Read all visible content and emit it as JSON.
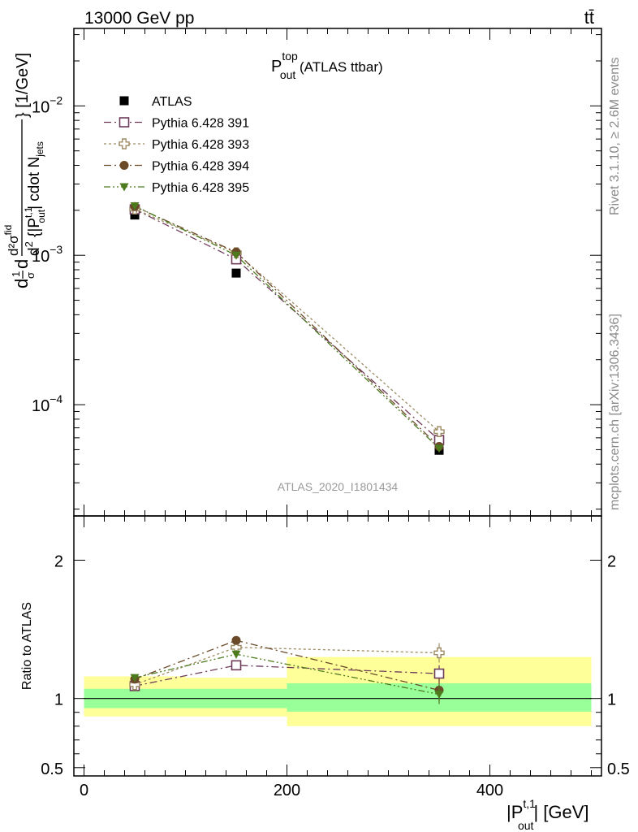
{
  "header": {
    "energy_label": "13000 GeV pp",
    "process_label": "tt̄"
  },
  "side_labels": {
    "rivet": "Rivet 3.1.10, ≥ 2.6M events",
    "mcplots": "mcplots.cern.ch [arXiv:1306.3436]"
  },
  "chart_data": [
    {
      "type": "scatter",
      "title": {
        "main": "P",
        "sup": "top",
        "sub": "out",
        "suffix": " (ATLAS ttbar)"
      },
      "watermark": "ATLAS_2020_I1801434",
      "ylabel": "d1dσd d²σ^fid/d²{|P_out^t,1| cdot N_jets} [1/GeV]",
      "ylabel_parts": {
        "front": "d",
        "f_num": "1",
        "f_den": "σ",
        "mid": "d",
        "bracket_num": "d²σ",
        "bracket_num_sup": "fid",
        "inner_lead": "d",
        "inner_sup": "2",
        "inner_p": " {|P",
        "inner_p_sup": "t,1",
        "inner_p_sub": "out",
        "inner_tail": "| cdot N",
        "inner_tail_sub": "jets",
        "close": "} [1/GeV]"
      },
      "yscale": "log",
      "ylim": [
        1.8e-05,
        0.033
      ],
      "y_ticks": [
        {
          "value": 0.01,
          "base": "10",
          "exp": "−2"
        },
        {
          "value": 0.001,
          "base": "10",
          "exp": "−3"
        },
        {
          "value": 0.0001,
          "base": "10",
          "exp": "−4"
        }
      ],
      "xlim": [
        -10,
        510
      ],
      "legend_position": "top-left",
      "series": [
        {
          "name": "ATLAS",
          "color": "#000000",
          "marker": "filled-square",
          "line": "none",
          "x": [
            50,
            150,
            350
          ],
          "y": [
            0.00186,
            0.00076,
            4.95e-05
          ]
        },
        {
          "name": "Pythia 6.428 391",
          "color": "#6d3b5a",
          "marker": "open-square",
          "line": "dashdot",
          "x": [
            50,
            150,
            350
          ],
          "y": [
            0.00203,
            0.00094,
            5.8e-05
          ]
        },
        {
          "name": "Pythia 6.428 393",
          "color": "#9c8a63",
          "marker": "open-cross",
          "line": "dotted",
          "x": [
            50,
            150,
            350
          ],
          "y": [
            0.00204,
            0.00104,
            6.6e-05
          ]
        },
        {
          "name": "Pythia 6.428 394",
          "color": "#6b4a2a",
          "marker": "filled-circle",
          "line": "dashdot",
          "x": [
            50,
            150,
            350
          ],
          "y": [
            0.00212,
            0.00105,
            5.25e-05
          ]
        },
        {
          "name": "Pythia 6.428 395",
          "color": "#4c7a1d",
          "marker": "filled-triangle-down",
          "line": "dashdotdot",
          "x": [
            50,
            150,
            350
          ],
          "y": [
            0.00214,
            0.001,
            5.1e-05
          ]
        }
      ]
    },
    {
      "type": "scatter",
      "ylabel": "Ratio to ATLAS",
      "ylim": [
        0.44,
        2.32
      ],
      "y_ticks": [
        {
          "value": 0.5,
          "label": "0.5"
        },
        {
          "value": 1,
          "label": "1"
        },
        {
          "value": 2,
          "label": "2"
        }
      ],
      "xlabel": {
        "lead": "|P",
        "sup": "t,1",
        "sub": "out",
        "tail": "| [GeV]"
      },
      "xlim": [
        -10,
        510
      ],
      "x_ticks": [
        {
          "value": 0,
          "label": "0"
        },
        {
          "value": 200,
          "label": "200"
        },
        {
          "value": 400,
          "label": "400"
        }
      ],
      "bands": [
        {
          "x": [
            0,
            100
          ],
          "stat": [
            0.93,
            1.07
          ],
          "total": [
            0.87,
            1.16
          ]
        },
        {
          "x": [
            100,
            200
          ],
          "stat": [
            0.93,
            1.07
          ],
          "total": [
            0.87,
            1.15
          ]
        },
        {
          "x": [
            200,
            500
          ],
          "stat": [
            0.905,
            1.11
          ],
          "total": [
            0.8,
            1.3
          ]
        }
      ],
      "band_colors": {
        "stat": "#99ff99",
        "total": "#ffff99"
      },
      "series": [
        {
          "name": "Pythia 6.428 391",
          "color": "#6d3b5a",
          "marker": "open-square",
          "line": "dashdot",
          "x": [
            50,
            150,
            350
          ],
          "y": [
            1.09,
            1.24,
            1.18
          ],
          "err": [
            0.02,
            0.03,
            0.06
          ]
        },
        {
          "name": "Pythia 6.428 393",
          "color": "#9c8a63",
          "marker": "open-cross",
          "line": "dotted",
          "x": [
            50,
            150,
            350
          ],
          "y": [
            1.1,
            1.37,
            1.33
          ],
          "err": [
            0.02,
            0.03,
            0.07
          ]
        },
        {
          "name": "Pythia 6.428 394",
          "color": "#6b4a2a",
          "marker": "filled-circle",
          "line": "dashdot",
          "x": [
            50,
            150,
            350
          ],
          "y": [
            1.14,
            1.42,
            1.06
          ],
          "err": [
            0.02,
            0.03,
            0.08
          ]
        },
        {
          "name": "Pythia 6.428 395",
          "color": "#4c7a1d",
          "marker": "filled-triangle-down",
          "line": "dashdotdot",
          "x": [
            50,
            150,
            350
          ],
          "y": [
            1.15,
            1.32,
            1.03
          ],
          "err": [
            0.02,
            0.03,
            0.07
          ]
        }
      ]
    }
  ]
}
